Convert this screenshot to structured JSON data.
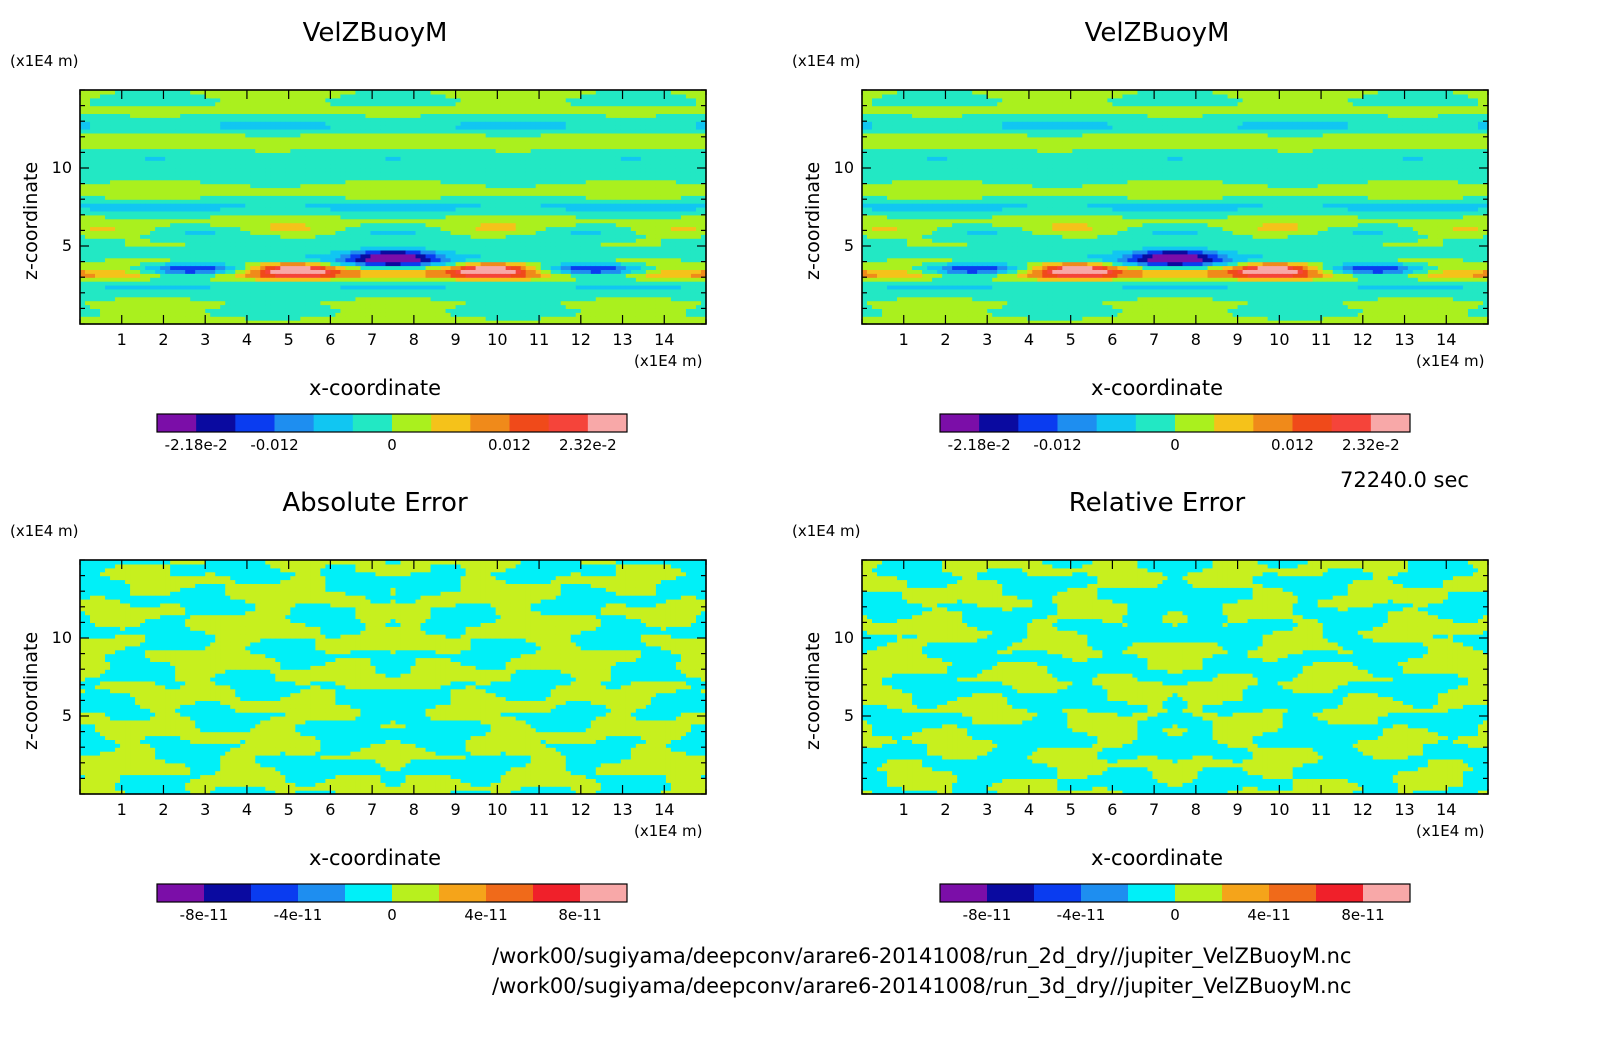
{
  "time_label": "72240.0 sec",
  "file_paths": [
    "/work00/sugiyama/deepconv/arare6-20141008/run_2d_dry//jupiter_VelZBuoyM.nc",
    "/work00/sugiyama/deepconv/arare6-20141008/run_3d_dry//jupiter_VelZBuoyM.nc"
  ],
  "chart_data": [
    {
      "type": "heatmap",
      "title": "VelZBuoyM",
      "xlabel": "x-coordinate",
      "ylabel": "z-coordinate",
      "xunit": "(x1E4 m)",
      "yunit": "(x1E4 m)",
      "xlim": [
        0,
        15
      ],
      "ylim": [
        0,
        15
      ],
      "xticks": [
        1,
        2,
        3,
        4,
        5,
        6,
        7,
        8,
        9,
        10,
        11,
        12,
        13,
        14
      ],
      "yticks": [
        5,
        10
      ],
      "colorbar": {
        "levels": 11,
        "labels": [
          "-2.18e-2",
          "-0.012",
          "0",
          "0.012",
          "2.32e-2"
        ],
        "colors": [
          "#7b0ea8",
          "#0a0aa0",
          "#0a3cf0",
          "#1e8ef0",
          "#11c6f2",
          "#22e8c4",
          "#aaf01e",
          "#f5c21a",
          "#f08a1a",
          "#f04a1a",
          "#f5443a",
          "#f8a8a8"
        ]
      },
      "features": "layered positive/negative cells near z=3.5-4.5, symmetric about x=7.5"
    },
    {
      "type": "heatmap",
      "title": "VelZBuoyM",
      "xlabel": "x-coordinate",
      "ylabel": "z-coordinate",
      "xunit": "(x1E4 m)",
      "yunit": "(x1E4 m)",
      "xlim": [
        0,
        15
      ],
      "ylim": [
        0,
        15
      ],
      "xticks": [
        1,
        2,
        3,
        4,
        5,
        6,
        7,
        8,
        9,
        10,
        11,
        12,
        13,
        14
      ],
      "yticks": [
        5,
        10
      ],
      "colorbar": {
        "levels": 11,
        "labels": [
          "-2.18e-2",
          "-0.012",
          "0",
          "0.012",
          "2.32e-2"
        ],
        "colors": [
          "#7b0ea8",
          "#0a0aa0",
          "#0a3cf0",
          "#1e8ef0",
          "#11c6f2",
          "#22e8c4",
          "#aaf01e",
          "#f5c21a",
          "#f08a1a",
          "#f04a1a",
          "#f5443a",
          "#f8a8a8"
        ]
      }
    },
    {
      "type": "heatmap",
      "title": "Absolute Error",
      "xlabel": "x-coordinate",
      "ylabel": "z-coordinate",
      "xunit": "(x1E4 m)",
      "yunit": "(x1E4 m)",
      "xlim": [
        0,
        15
      ],
      "ylim": [
        0,
        15
      ],
      "xticks": [
        1,
        2,
        3,
        4,
        5,
        6,
        7,
        8,
        9,
        10,
        11,
        12,
        13,
        14
      ],
      "yticks": [
        5,
        10
      ],
      "colorbar": {
        "levels": 10,
        "labels": [
          "-8e-11",
          "-4e-11",
          "0",
          "4e-11",
          "8e-11"
        ],
        "colors": [
          "#7b0ea8",
          "#0a0aa0",
          "#0a3cf0",
          "#1e8ef0",
          "#00f0f8",
          "#b8f01e",
          "#f5a41a",
          "#f06a1a",
          "#f0202a",
          "#f8a8a8"
        ]
      },
      "value_colors_used": [
        "#00f0f8",
        "#c7f01e"
      ]
    },
    {
      "type": "heatmap",
      "title": "Relative Error",
      "xlabel": "x-coordinate",
      "ylabel": "z-coordinate",
      "xunit": "(x1E4 m)",
      "yunit": "(x1E4 m)",
      "xlim": [
        0,
        15
      ],
      "ylim": [
        0,
        15
      ],
      "xticks": [
        1,
        2,
        3,
        4,
        5,
        6,
        7,
        8,
        9,
        10,
        11,
        12,
        13,
        14
      ],
      "yticks": [
        5,
        10
      ],
      "colorbar": {
        "levels": 10,
        "labels": [
          "-8e-11",
          "-4e-11",
          "0",
          "4e-11",
          "8e-11"
        ],
        "colors": [
          "#7b0ea8",
          "#0a0aa0",
          "#0a3cf0",
          "#1e8ef0",
          "#00f0f8",
          "#b8f01e",
          "#f5a41a",
          "#f06a1a",
          "#f0202a",
          "#f8a8a8"
        ]
      },
      "value_colors_used": [
        "#00f0f8",
        "#c7f01e"
      ]
    }
  ]
}
